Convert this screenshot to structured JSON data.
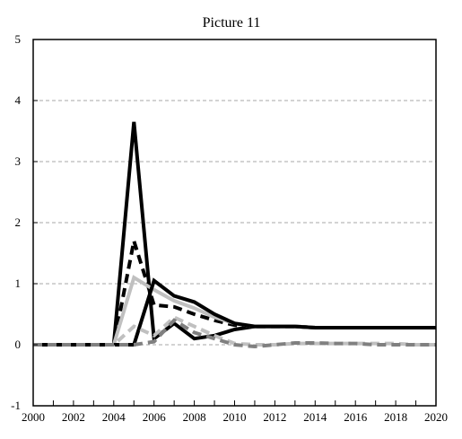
{
  "chart_data": {
    "type": "line",
    "title": "Picture 11",
    "xlabel": "",
    "ylabel": "",
    "xlim": [
      2000,
      2020
    ],
    "ylim": [
      -1,
      5
    ],
    "x_ticks": [
      "2000",
      "2002",
      "2004",
      "2006",
      "2008",
      "2010",
      "2012",
      "2014",
      "2016",
      "2018",
      "2020"
    ],
    "y_ticks": [
      "-1",
      "0",
      "1",
      "2",
      "3",
      "4",
      "5"
    ],
    "grid": "horizontal dashed",
    "legend": "none",
    "x": [
      2000,
      2001,
      2002,
      2003,
      2004,
      2005,
      2006,
      2007,
      2008,
      2009,
      2010,
      2011,
      2012,
      2013,
      2014,
      2015,
      2016,
      2017,
      2018,
      2019,
      2020
    ],
    "series": [
      {
        "color": "#000000",
        "style": "solid",
        "values": [
          0,
          0,
          0,
          0,
          0,
          3.65,
          0.1,
          0.35,
          0.1,
          0.15,
          0.25,
          0.3,
          0.3,
          0.3,
          0.28,
          0.28,
          0.28,
          0.28,
          0.28,
          0.28,
          0.28
        ]
      },
      {
        "color": "#000000",
        "style": "dashed",
        "values": [
          0,
          0,
          0,
          0,
          0,
          1.7,
          0.65,
          0.62,
          0.5,
          0.4,
          0.32,
          0.3,
          0.3,
          0.3,
          0.28,
          0.28,
          0.28,
          0.28,
          0.28,
          0.28,
          0.28
        ]
      },
      {
        "color": "#c0c0c0",
        "style": "solid",
        "values": [
          0,
          0,
          0,
          0,
          0,
          1.1,
          0.9,
          0.72,
          0.6,
          0.45,
          0.35,
          0.3,
          0.3,
          0.3,
          0.28,
          0.28,
          0.28,
          0.28,
          0.28,
          0.28,
          0.28
        ]
      },
      {
        "color": "#000000",
        "style": "solid",
        "values": [
          0,
          0,
          0,
          0,
          0,
          0,
          1.05,
          0.8,
          0.7,
          0.5,
          0.35,
          0.3,
          0.3,
          0.3,
          0.28,
          0.28,
          0.28,
          0.28,
          0.28,
          0.28,
          0.28
        ]
      },
      {
        "color": "#c0c0c0",
        "style": "dashed",
        "values": [
          0,
          0,
          0,
          0,
          0,
          0.3,
          0.15,
          0.45,
          0.3,
          0.15,
          0.02,
          0,
          0,
          0.02,
          0.02,
          0.02,
          0.02,
          0.02,
          0.02,
          0,
          0
        ]
      },
      {
        "color": "#808080",
        "style": "dashed",
        "values": [
          0,
          0,
          0,
          0,
          0,
          0,
          0.05,
          0.4,
          0.2,
          0.1,
          0.0,
          -0.03,
          0.0,
          0.03,
          0.03,
          0.02,
          0.02,
          0.0,
          0.0,
          0.0,
          0.0
        ]
      }
    ]
  }
}
